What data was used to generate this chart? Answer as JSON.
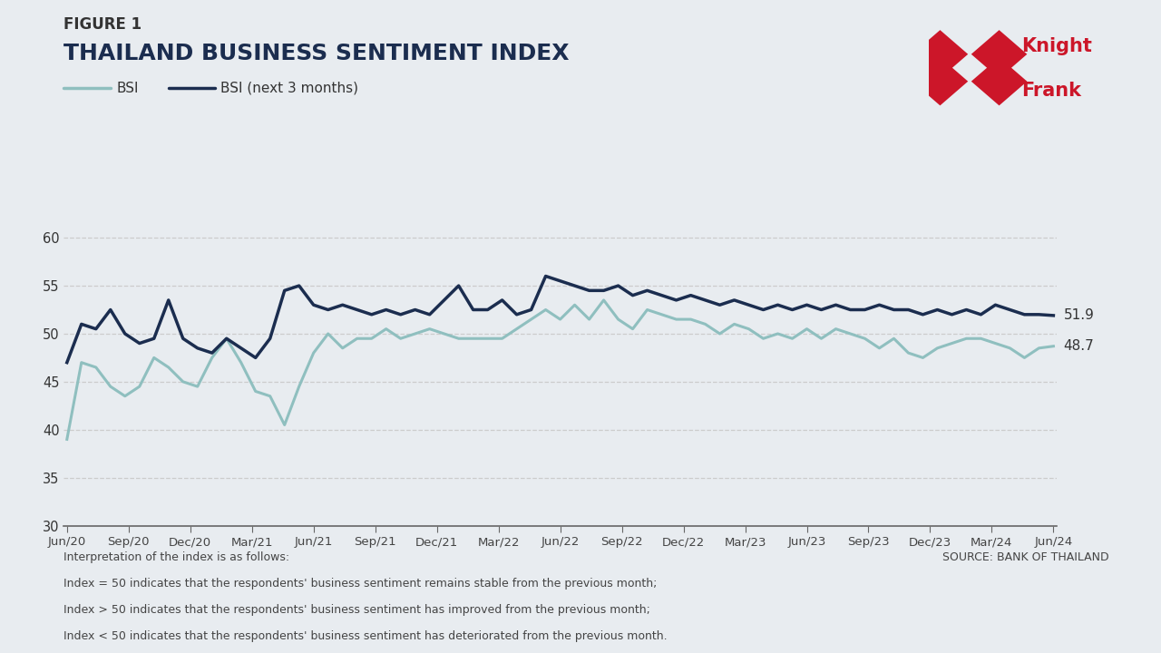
{
  "figure_label": "FIGURE 1",
  "title": "THAILAND BUSINESS SENTIMENT INDEX",
  "background_color": "#e8ecf0",
  "bsi_color": "#8fbfbf",
  "bsi_next_color": "#1b2d4f",
  "x_labels": [
    "Jun/20",
    "Sep/20",
    "Dec/20",
    "Mar/21",
    "Jun/21",
    "Sep/21",
    "Dec/21",
    "Mar/22",
    "Jun/22",
    "Sep/22",
    "Dec/22",
    "Mar/23",
    "Jun/23",
    "Sep/23",
    "Dec/23",
    "Mar/24",
    "Jun/24"
  ],
  "ylim": [
    30,
    63
  ],
  "yticks": [
    30,
    35,
    40,
    45,
    50,
    55,
    60
  ],
  "bsi_end_label": "48.7",
  "bsi_next_end_label": "51.9",
  "source_text": "SOURCE: BANK OF THAILAND",
  "footnote_lines": [
    "Interpretation of the index is as follows:",
    "Index = 50 indicates that the respondents' business sentiment remains stable from the previous month;",
    "Index > 50 indicates that the respondents' business sentiment has improved from the previous month;",
    "Index < 50 indicates that the respondents' business sentiment has deteriorated from the previous month."
  ],
  "bsi": [
    39.0,
    47.0,
    46.5,
    44.5,
    43.5,
    44.5,
    47.5,
    46.5,
    45.0,
    44.5,
    47.5,
    49.5,
    47.0,
    44.0,
    43.5,
    40.5,
    44.5,
    48.0,
    50.0,
    48.5,
    49.5,
    49.5,
    50.5,
    49.5,
    50.0,
    50.5,
    50.0,
    49.5,
    49.5,
    49.5,
    49.5,
    50.5,
    51.5,
    52.5,
    51.5,
    53.0,
    51.5,
    53.5,
    51.5,
    50.5,
    52.5,
    52.0,
    51.5,
    51.5,
    51.0,
    50.0,
    51.0,
    50.5,
    49.5,
    50.0,
    49.5,
    50.5,
    49.5,
    50.5,
    50.0,
    49.5,
    48.5,
    49.5,
    48.0,
    47.5,
    48.5,
    49.0,
    49.5,
    49.5,
    49.0,
    48.5,
    47.5,
    48.5,
    48.7
  ],
  "bsi_next": [
    47.0,
    51.0,
    50.5,
    52.5,
    50.0,
    49.0,
    49.5,
    53.5,
    49.5,
    48.5,
    48.0,
    49.5,
    48.5,
    47.5,
    49.5,
    54.5,
    55.0,
    53.0,
    52.5,
    53.0,
    52.5,
    52.0,
    52.5,
    52.0,
    52.5,
    52.0,
    53.5,
    55.0,
    52.5,
    52.5,
    53.5,
    52.0,
    52.5,
    56.0,
    55.5,
    55.0,
    54.5,
    54.5,
    55.0,
    54.0,
    54.5,
    54.0,
    53.5,
    54.0,
    53.5,
    53.0,
    53.5,
    53.0,
    52.5,
    53.0,
    52.5,
    53.0,
    52.5,
    53.0,
    52.5,
    52.5,
    53.0,
    52.5,
    52.5,
    52.0,
    52.5,
    52.0,
    52.5,
    52.0,
    53.0,
    52.5,
    52.0,
    52.0,
    51.9
  ]
}
